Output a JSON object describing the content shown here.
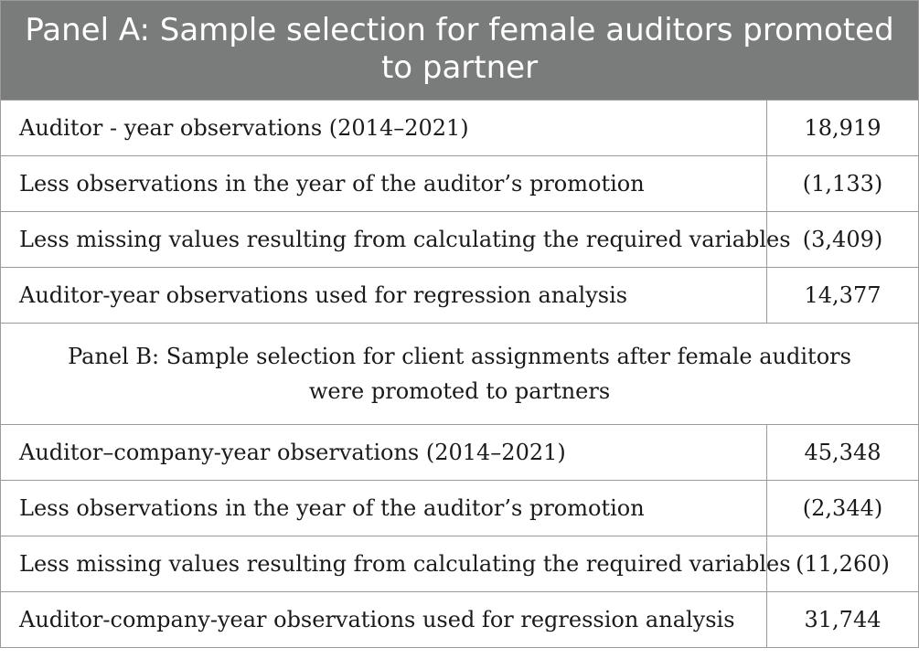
{
  "panel_a": {
    "title": "Panel A: Sample selection for female auditors promoted to partner",
    "rows": [
      {
        "label": "Auditor - year observations (2014–2021)",
        "value": "18,919"
      },
      {
        "label": "Less observations in the year of the auditor’s promotion",
        "value": "(1,133)"
      },
      {
        "label": "Less missing values resulting from calculating the required variables",
        "value": "(3,409)"
      },
      {
        "label": "Auditor-year observations used for regression analysis",
        "value": "14,377"
      }
    ]
  },
  "panel_b": {
    "title": "Panel B: Sample selection for client assignments after female auditors were promoted to partners",
    "rows": [
      {
        "label": "Auditor–company-year observations (2014–2021)",
        "value": "45,348"
      },
      {
        "label": "Less observations in the year of the auditor’s promotion",
        "value": "(2,344)"
      },
      {
        "label": "Less missing values resulting from calculating the required variables",
        "value": "(11,260)"
      },
      {
        "label": "Auditor-company-year observations used for regression analysis",
        "value": "31,744"
      }
    ]
  }
}
